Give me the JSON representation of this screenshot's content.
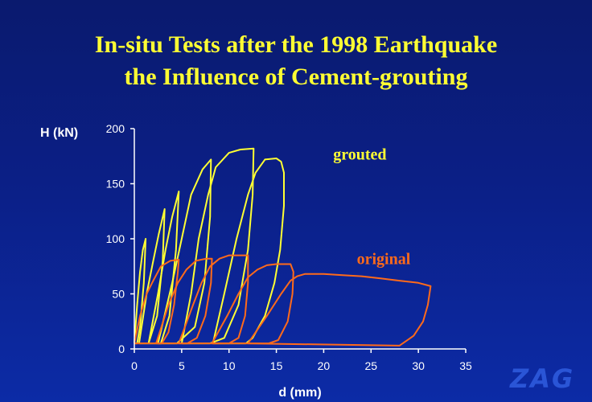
{
  "title_line1": "In-situ Tests after the 1998 Earthquake",
  "title_line2": "the Influence of Cement-grouting",
  "logo": "ZAG",
  "chart_data": {
    "type": "line",
    "xlabel": "d (mm)",
    "ylabel": "H (kN)",
    "xlim": [
      0,
      35
    ],
    "ylim": [
      0,
      200
    ],
    "xticks": [
      0,
      5,
      10,
      15,
      20,
      25,
      30,
      35
    ],
    "yticks": [
      0,
      50,
      100,
      150,
      200
    ],
    "grid": false,
    "colors": {
      "grouted": "#ffff33",
      "original": "#ff6a1a",
      "axis": "#ffffff"
    },
    "annotations": [
      {
        "text": "grouted",
        "x": 21,
        "y": 172,
        "color": "#ffff33"
      },
      {
        "text": "original",
        "x": 23.5,
        "y": 77,
        "color": "#ff6a1a"
      }
    ],
    "series": [
      {
        "key": "grouted",
        "loops": [
          [
            [
              0.0,
              5
            ],
            [
              0.3,
              40
            ],
            [
              0.6,
              70
            ],
            [
              0.9,
              90
            ],
            [
              1.2,
              100
            ],
            [
              1.0,
              60
            ],
            [
              0.6,
              20
            ],
            [
              0.3,
              5
            ],
            [
              0.0,
              5
            ]
          ],
          [
            [
              0.5,
              5
            ],
            [
              1.3,
              50
            ],
            [
              2.0,
              80
            ],
            [
              2.6,
              105
            ],
            [
              3.2,
              127
            ],
            [
              3.0,
              80
            ],
            [
              2.4,
              30
            ],
            [
              1.5,
              5
            ],
            [
              0.5,
              5
            ]
          ],
          [
            [
              1.5,
              5
            ],
            [
              2.5,
              50
            ],
            [
              3.3,
              90
            ],
            [
              4.0,
              120
            ],
            [
              4.7,
              143
            ],
            [
              4.4,
              90
            ],
            [
              3.7,
              30
            ],
            [
              2.8,
              5
            ],
            [
              1.5,
              5
            ]
          ],
          [
            [
              2.5,
              5
            ],
            [
              4.0,
              60
            ],
            [
              5.0,
              100
            ],
            [
              6.0,
              140
            ],
            [
              7.2,
              163
            ],
            [
              8.1,
              172
            ],
            [
              8.0,
              120
            ],
            [
              7.4,
              60
            ],
            [
              6.4,
              20
            ],
            [
              4.5,
              5
            ],
            [
              2.5,
              5
            ]
          ],
          [
            [
              5.0,
              5
            ],
            [
              6.0,
              50
            ],
            [
              6.8,
              100
            ],
            [
              7.8,
              140
            ],
            [
              8.6,
              165
            ],
            [
              10.0,
              178
            ],
            [
              11.2,
              181
            ],
            [
              12.6,
              182
            ],
            [
              12.5,
              140
            ],
            [
              12.0,
              90
            ],
            [
              11.0,
              40
            ],
            [
              9.5,
              10
            ],
            [
              8.0,
              5
            ],
            [
              5.0,
              5
            ]
          ],
          [
            [
              8.3,
              5
            ],
            [
              9.5,
              50
            ],
            [
              10.8,
              100
            ],
            [
              12.0,
              140
            ],
            [
              12.8,
              160
            ],
            [
              13.8,
              172
            ],
            [
              15.0,
              173
            ],
            [
              15.5,
              170
            ],
            [
              15.8,
              160
            ],
            [
              15.8,
              130
            ],
            [
              15.4,
              90
            ],
            [
              14.8,
              60
            ],
            [
              13.8,
              30
            ],
            [
              12.5,
              10
            ],
            [
              11.8,
              5
            ],
            [
              8.3,
              5
            ]
          ]
        ]
      },
      {
        "key": "original",
        "loops": [
          [
            [
              0.0,
              5
            ],
            [
              0.6,
              30
            ],
            [
              1.3,
              50
            ],
            [
              2.0,
              62
            ],
            [
              2.8,
              75
            ],
            [
              3.8,
              80
            ],
            [
              4.7,
              81
            ],
            [
              4.6,
              70
            ],
            [
              4.2,
              40
            ],
            [
              3.6,
              15
            ],
            [
              2.9,
              5
            ],
            [
              0.0,
              5
            ]
          ],
          [
            [
              2.3,
              5
            ],
            [
              3.6,
              40
            ],
            [
              4.6,
              60
            ],
            [
              5.5,
              72
            ],
            [
              6.5,
              80
            ],
            [
              7.6,
              82
            ],
            [
              8.2,
              82
            ],
            [
              8.1,
              60
            ],
            [
              7.5,
              30
            ],
            [
              6.6,
              10
            ],
            [
              5.6,
              5
            ],
            [
              2.3,
              5
            ]
          ],
          [
            [
              4.7,
              5
            ],
            [
              6.2,
              40
            ],
            [
              7.1,
              60
            ],
            [
              8.0,
              75
            ],
            [
              9.0,
              82
            ],
            [
              10.0,
              85
            ],
            [
              11.0,
              85
            ],
            [
              12.0,
              85
            ],
            [
              12.0,
              60
            ],
            [
              11.7,
              30
            ],
            [
              11.0,
              10
            ],
            [
              10.0,
              5
            ],
            [
              4.7,
              5
            ]
          ],
          [
            [
              8.2,
              5
            ],
            [
              9.8,
              30
            ],
            [
              11.0,
              50
            ],
            [
              12.0,
              65
            ],
            [
              13.0,
              72
            ],
            [
              14.0,
              76
            ],
            [
              15.0,
              77
            ],
            [
              16.5,
              77
            ],
            [
              16.8,
              70
            ],
            [
              16.7,
              50
            ],
            [
              16.2,
              25
            ],
            [
              15.2,
              8
            ],
            [
              14.2,
              5
            ],
            [
              8.2,
              5
            ]
          ],
          [
            [
              12.0,
              5
            ],
            [
              14.0,
              30
            ],
            [
              15.5,
              50
            ],
            [
              16.5,
              62
            ],
            [
              17.2,
              66
            ],
            [
              18.0,
              68
            ],
            [
              20.0,
              68
            ],
            [
              22.0,
              67
            ],
            [
              24.0,
              66
            ],
            [
              26.0,
              64
            ],
            [
              28.0,
              62
            ],
            [
              30.0,
              60
            ],
            [
              31.3,
              57
            ],
            [
              31.0,
              40
            ],
            [
              30.5,
              25
            ],
            [
              29.5,
              12
            ],
            [
              28.5,
              6
            ],
            [
              28.0,
              3
            ],
            [
              12.0,
              5
            ]
          ]
        ]
      }
    ]
  }
}
